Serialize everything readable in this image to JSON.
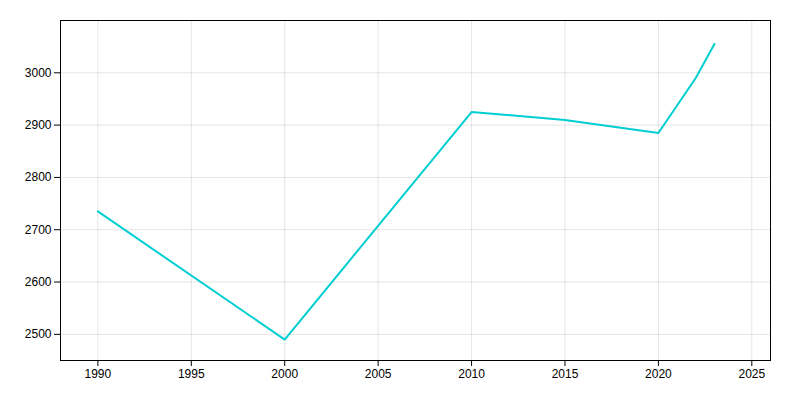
{
  "chart_data": {
    "type": "line",
    "x": [
      1990,
      2000,
      2010,
      2015,
      2020,
      2022,
      2023
    ],
    "values": [
      2735,
      2490,
      2925,
      2910,
      2885,
      2990,
      3055
    ],
    "color": "#00CED1",
    "xlim": [
      1988,
      2026
    ],
    "ylim": [
      2450,
      3100
    ],
    "xticks": [
      1990,
      1995,
      2000,
      2005,
      2010,
      2015,
      2020,
      2025
    ],
    "yticks": [
      2500,
      2600,
      2700,
      2800,
      2900,
      3000
    ],
    "grid": true
  }
}
